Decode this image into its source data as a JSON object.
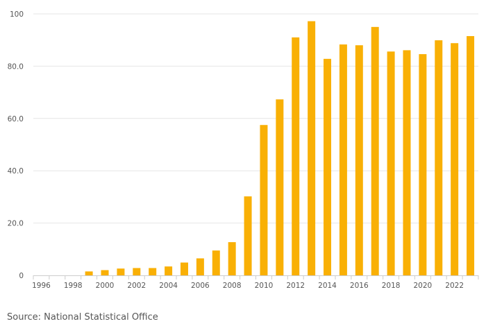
{
  "chart_data": {
    "type": "bar",
    "title": "",
    "xlabel": "",
    "ylabel": "",
    "ylim": [
      0,
      100
    ],
    "yticks": [
      {
        "value": 0,
        "label": "0"
      },
      {
        "value": 20,
        "label": "20.0"
      },
      {
        "value": 40,
        "label": "40.0"
      },
      {
        "value": 60,
        "label": "60.0"
      },
      {
        "value": 80,
        "label": "80.0"
      },
      {
        "value": 100,
        "label": "100"
      }
    ],
    "categories": [
      "1996",
      "1997",
      "1998",
      "1999",
      "2000",
      "2001",
      "2002",
      "2003",
      "2004",
      "2005",
      "2006",
      "2007",
      "2008",
      "2009",
      "2010",
      "2011",
      "2012",
      "2013",
      "2014",
      "2015",
      "2016",
      "2017",
      "2018",
      "2019",
      "2020",
      "2021",
      "2022",
      "2023"
    ],
    "xtick_labels": [
      "1996",
      "1998",
      "2000",
      "2002",
      "2004",
      "2006",
      "2008",
      "2010",
      "2012",
      "2014",
      "2016",
      "2018",
      "2020",
      "2022"
    ],
    "values": [
      0,
      0,
      0,
      1.5,
      2,
      2.6,
      2.8,
      2.8,
      3.4,
      4.9,
      6.5,
      9.5,
      12.7,
      30.2,
      57.5,
      67.3,
      91,
      97.2,
      82.8,
      88.3,
      88,
      95,
      85.6,
      86.1,
      84.6,
      89.9,
      88.8,
      91.5
    ],
    "bar_color": "#F9B005",
    "grid": true,
    "grid_color": "#e6e6e6"
  },
  "source": "Source: National Statistical Office"
}
